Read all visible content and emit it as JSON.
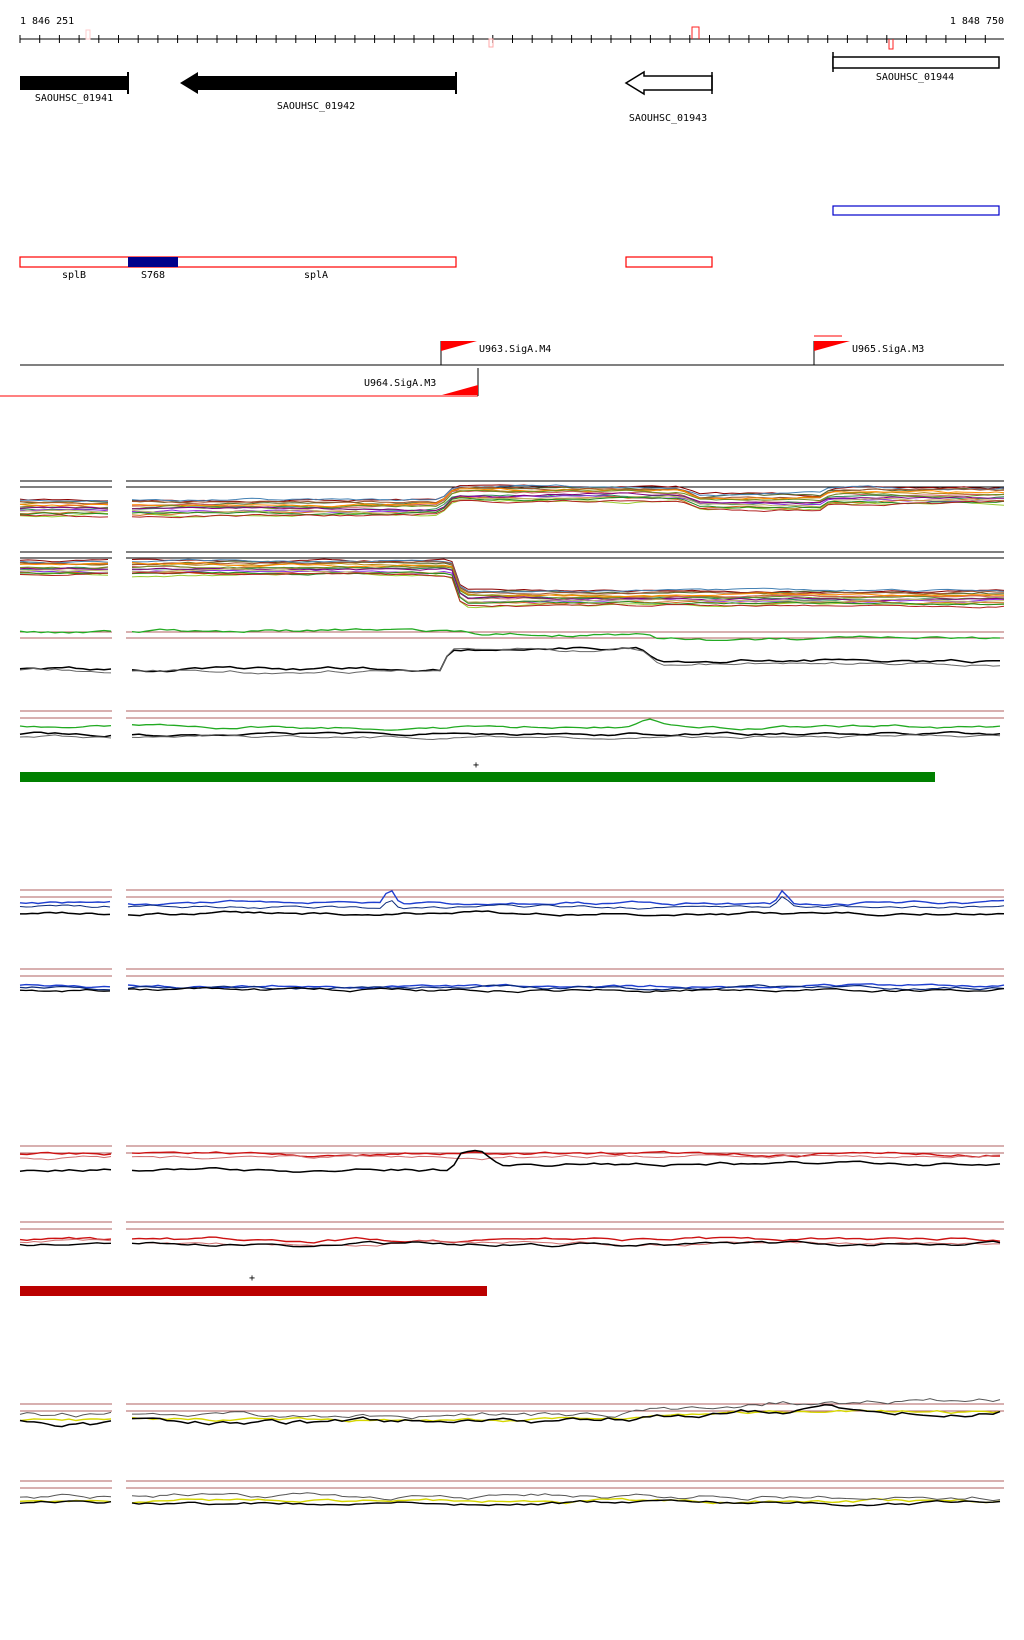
{
  "ruler": {
    "start_label": "1 846 251",
    "end_label": "1 848 750"
  },
  "genes": [
    {
      "id": "SAOUHSC_01941",
      "label": "SAOUHSC_01941",
      "strand": "+",
      "style": "filled"
    },
    {
      "id": "SAOUHSC_01942",
      "label": "SAOUHSC_01942",
      "strand": "-",
      "style": "filled"
    },
    {
      "id": "SAOUHSC_01943",
      "label": "SAOUHSC_01943",
      "strand": "-",
      "style": "outline"
    },
    {
      "id": "SAOUHSC_01944",
      "label": "SAOUHSC_01944",
      "strand": "+",
      "style": "outline"
    }
  ],
  "features": [
    {
      "id": "splB",
      "label": "splB"
    },
    {
      "id": "S768",
      "label": "S768"
    },
    {
      "id": "splA",
      "label": "splA"
    }
  ],
  "promoters": [
    {
      "id": "U963",
      "label": "U963.SigA.M4"
    },
    {
      "id": "U964",
      "label": "U964.SigA.M3"
    },
    {
      "id": "U965",
      "label": "U965.SigA.M3"
    }
  ],
  "segments": [
    {
      "name": "green-segment",
      "marker": "+"
    },
    {
      "name": "red-segment",
      "marker": "+"
    }
  ],
  "colors": {
    "gene_fill": "#000000",
    "annotation_red": "#ff0000",
    "annotation_blue": "#0000cc",
    "s768_fill": "#00008b",
    "segment_green": "#008000",
    "segment_red": "#bb0000",
    "track_blue": "#1f3fd0",
    "track_red": "#cc1111",
    "track_yellow": "#d6d600",
    "track_green": "#22aa22"
  }
}
